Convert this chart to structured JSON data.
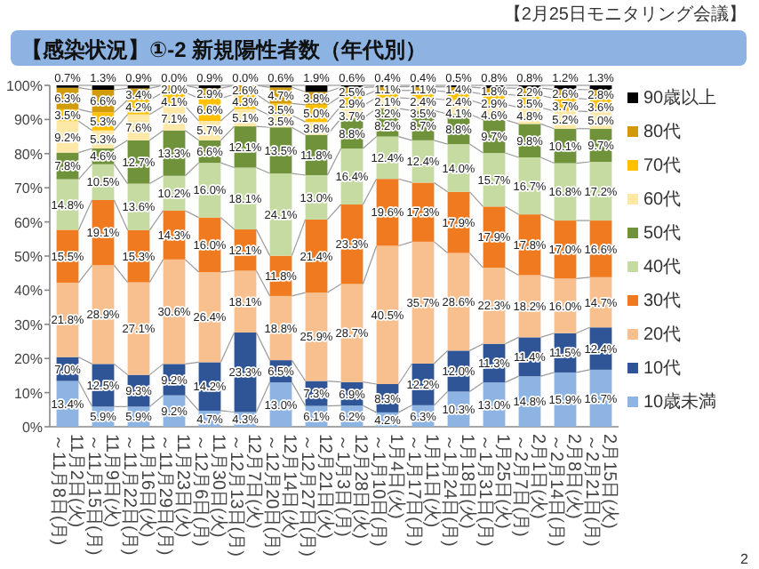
{
  "chart_data": {
    "type": "bar",
    "stacked": true,
    "title": "【感染状況】①-2 新規陽性者数（年代別）",
    "annotations": [
      "【2月25日モニタリング会議】",
      "2"
    ],
    "categories": [
      "11月2日(火)\n～11月8日(月)",
      "11月9日(火)\n～11月15日(月)",
      "11月16日(火)\n～11月22日(月)",
      "11月23日(火)\n～11月29日(月)",
      "11月30日(火)\n～12月6日(月)",
      "12月7日(火)\n～12月13日(月)",
      "12月14日(火)\n～12月20日(月)",
      "12月21日(火)\n～12月27日(月)",
      "12月28日(火)\n～1月3日(月)",
      "1月4日(火)\n～1月10日(月)",
      "1月11日(火)\n～1月17日(月)",
      "1月18日(火)\n～1月24日(月)",
      "1月25日(火)\n～1月31日(月)",
      "2月1日(火)\n～2月7日(月)",
      "2月8日(火)\n～2月14日(月)",
      "2月15日(火)\n～2月21日(月)"
    ],
    "ylim": [
      0,
      100
    ],
    "yticks": [
      {
        "value": 0,
        "label": "0%"
      },
      {
        "value": 10,
        "label": "10%"
      },
      {
        "value": 20,
        "label": "20%"
      },
      {
        "value": 30,
        "label": "30%"
      },
      {
        "value": 40,
        "label": "40%"
      },
      {
        "value": 50,
        "label": "50%"
      },
      {
        "value": 60,
        "label": "60%"
      },
      {
        "value": 70,
        "label": "70%"
      },
      {
        "value": 80,
        "label": "80%"
      },
      {
        "value": 90,
        "label": "90%"
      },
      {
        "value": 100,
        "label": "100%"
      }
    ],
    "legend": "right",
    "series": [
      {
        "name": "10歳未満",
        "color": "#8db4e2",
        "values": [
          13.4,
          5.9,
          5.9,
          9.2,
          4.7,
          4.3,
          13.0,
          6.1,
          6.2,
          4.2,
          6.3,
          10.3,
          13.0,
          14.8,
          15.9,
          16.7
        ],
        "value_labels": [
          "13.4%",
          "5.9%",
          "5.9%",
          "9.2%",
          "4.7%",
          "4.3%",
          "13.0%",
          "6.1%",
          "6.2%",
          "4.2%",
          "6.3%",
          "10.3%",
          "13.0%",
          "14.8%",
          "15.9%",
          "16.7%"
        ]
      },
      {
        "name": "10代",
        "color": "#2f5597",
        "values": [
          7.0,
          12.5,
          9.3,
          9.2,
          14.2,
          23.3,
          6.5,
          7.3,
          6.9,
          8.3,
          12.2,
          12.0,
          11.3,
          11.4,
          11.5,
          12.4
        ],
        "value_labels": [
          "7.0%",
          "12.5%",
          "9.3%",
          "9.2%",
          "14.2%",
          "23.3%",
          "6.5%",
          "7.3%",
          "6.9%",
          "8.3%",
          "12.2%",
          "12.0%",
          "11.3%",
          "11.4%",
          "11.5%",
          "12.4%"
        ]
      },
      {
        "name": "20代",
        "color": "#f8c08e",
        "values": [
          21.8,
          28.9,
          27.1,
          30.6,
          26.4,
          18.1,
          18.8,
          25.9,
          28.7,
          40.5,
          35.7,
          28.6,
          22.3,
          18.2,
          16.0,
          14.7
        ],
        "value_labels": [
          "21.8%",
          "28.9%",
          "27.1%",
          "30.6%",
          "26.4%",
          "18.1%",
          "18.8%",
          "25.9%",
          "28.7%",
          "40.5%",
          "35.7%",
          "28.6%",
          "22.3%",
          "18.2%",
          "16.0%",
          "14.7%"
        ]
      },
      {
        "name": "30代",
        "color": "#f07a20",
        "values": [
          15.5,
          19.1,
          15.3,
          14.3,
          16.0,
          12.1,
          11.8,
          21.4,
          23.3,
          19.6,
          17.3,
          17.9,
          17.9,
          17.8,
          17.0,
          16.6
        ],
        "value_labels": [
          "15.5%",
          "19.1%",
          "15.3%",
          "14.3%",
          "16.0%",
          "12.1%",
          "11.8%",
          "21.4%",
          "23.3%",
          "19.6%",
          "17.3%",
          "17.9%",
          "17.9%",
          "17.8%",
          "17.0%",
          "16.6%"
        ]
      },
      {
        "name": "40代",
        "color": "#c5dba1",
        "values": [
          14.8,
          10.5,
          13.6,
          10.2,
          16.0,
          18.1,
          24.1,
          13.0,
          16.4,
          12.4,
          12.4,
          14.0,
          15.7,
          16.7,
          16.8,
          17.2
        ],
        "value_labels": [
          "14.8%",
          "10.5%",
          "13.6%",
          "10.2%",
          "16.0%",
          "18.1%",
          "24.1%",
          "13.0%",
          "16.4%",
          "12.4%",
          "12.4%",
          "14.0%",
          "15.7%",
          "16.7%",
          "16.8%",
          "17.2%"
        ]
      },
      {
        "name": "50代",
        "color": "#70923a",
        "values": [
          7.8,
          4.6,
          12.7,
          13.3,
          6.6,
          12.1,
          13.5,
          11.8,
          8.8,
          8.2,
          8.7,
          8.8,
          9.7,
          9.8,
          10.1,
          9.7
        ],
        "value_labels": [
          "7.8%",
          "4.6%",
          "12.7%",
          "13.3%",
          "6.6%",
          "12.1%",
          "13.5%",
          "11.8%",
          "8.8%",
          "8.2%",
          "8.7%",
          "8.8%",
          "9.7%",
          "9.8%",
          "10.1%",
          "9.7%"
        ]
      },
      {
        "name": "60代",
        "color": "#fee8a8",
        "values": [
          9.2,
          5.3,
          7.6,
          7.1,
          5.7,
          5.1,
          3.5,
          3.8,
          3.7,
          3.2,
          3.5,
          4.1,
          4.6,
          4.8,
          5.2,
          5.0
        ],
        "value_labels": [
          "9.2%",
          "5.3%",
          "7.6%",
          "7.1%",
          "5.7%",
          "5.1%",
          "3.5%",
          "3.8%",
          "3.7%",
          "3.2%",
          "3.5%",
          "4.1%",
          "4.6%",
          "4.8%",
          "5.2%",
          "5.0%"
        ]
      },
      {
        "name": "70代",
        "color": "#ffc000",
        "values": [
          3.5,
          5.3,
          4.2,
          4.1,
          6.6,
          4.3,
          3.5,
          5.0,
          2.9,
          2.1,
          2.4,
          2.4,
          2.9,
          3.5,
          3.7,
          3.6
        ],
        "value_labels": [
          "3.5%",
          "5.3%",
          "4.2%",
          "4.1%",
          "6.6%",
          "4.3%",
          "3.5%",
          "5.0%",
          "2.9%",
          "2.1%",
          "2.4%",
          "2.4%",
          "2.9%",
          "3.5%",
          "3.7%",
          "3.6%"
        ]
      },
      {
        "name": "80代",
        "color": "#d19b0b",
        "values": [
          6.3,
          6.6,
          3.4,
          2.0,
          2.9,
          2.6,
          4.7,
          3.8,
          2.5,
          1.1,
          1.1,
          1.4,
          1.8,
          2.2,
          2.6,
          2.8
        ],
        "value_labels": [
          "6.3%",
          "6.6%",
          "3.4%",
          "2.0%",
          "2.9%",
          "2.6%",
          "4.7%",
          "3.8%",
          "2.5%",
          "1.1%",
          "1.1%",
          "1.4%",
          "1.8%",
          "2.2%",
          "2.6%",
          "2.8%"
        ]
      },
      {
        "name": "90歳以上",
        "color": "#000000",
        "values": [
          0.7,
          1.3,
          0.9,
          0.0,
          0.9,
          0.0,
          0.6,
          1.9,
          0.6,
          0.4,
          0.4,
          0.5,
          0.8,
          0.8,
          1.2,
          1.3
        ],
        "value_labels": [
          "0.7%",
          "1.3%",
          "0.9%",
          "0.0%",
          "0.9%",
          "0.0%",
          "0.6%",
          "1.9%",
          "0.6%",
          "0.4%",
          "0.4%",
          "0.5%",
          "0.8%",
          "0.8%",
          "1.2%",
          "1.3%"
        ]
      }
    ]
  }
}
